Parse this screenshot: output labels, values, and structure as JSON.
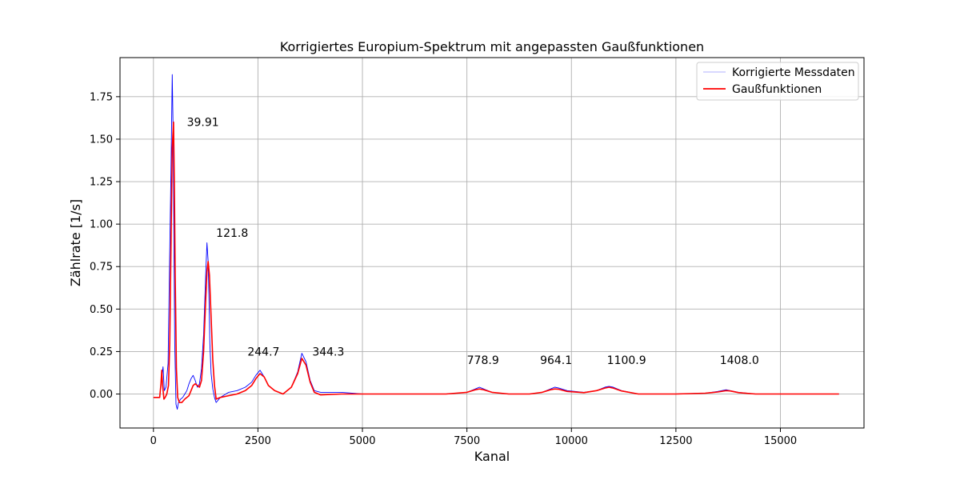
{
  "chart_data": {
    "type": "line",
    "title": "Korrigiertes Europium-Spektrum mit angepassten Gaußfunktionen",
    "xlabel": "Kanal",
    "ylabel": "Zählrate [1/s]",
    "xlim": [
      -800,
      17000
    ],
    "ylim": [
      -0.2,
      1.98
    ],
    "xticks": [
      0,
      2500,
      5000,
      7500,
      10000,
      12500,
      15000
    ],
    "xtick_labels": [
      "0",
      "2500",
      "5000",
      "7500",
      "10000",
      "12500",
      "15000"
    ],
    "yticks": [
      0.0,
      0.25,
      0.5,
      0.75,
      1.0,
      1.25,
      1.5,
      1.75
    ],
    "ytick_labels": [
      "0.00",
      "0.25",
      "0.50",
      "0.75",
      "1.00",
      "1.25",
      "1.50",
      "1.75"
    ],
    "grid": true,
    "legend_position": "top-right",
    "series": [
      {
        "name": "Korrigierte Messdaten",
        "color": "#0000ff",
        "x": [
          0,
          150,
          200,
          230,
          260,
          300,
          350,
          380,
          420,
          450,
          470,
          490,
          510,
          540,
          570,
          600,
          650,
          700,
          750,
          800,
          850,
          900,
          950,
          1000,
          1050,
          1100,
          1150,
          1200,
          1250,
          1280,
          1310,
          1330,
          1350,
          1380,
          1420,
          1460,
          1500,
          1600,
          1800,
          2000,
          2200,
          2350,
          2450,
          2550,
          2650,
          2750,
          2900,
          3100,
          3300,
          3450,
          3550,
          3650,
          3750,
          3850,
          4000,
          4500,
          5000,
          6000,
          7000,
          7500,
          7700,
          7800,
          7900,
          8100,
          8500,
          9000,
          9300,
          9500,
          9600,
          9700,
          9900,
          10300,
          10600,
          10800,
          10900,
          11000,
          11200,
          11600,
          12500,
          13200,
          13500,
          13700,
          13800,
          14000,
          14400,
          15000,
          15500,
          16000,
          16400
        ],
        "y": [
          -0.02,
          -0.02,
          0.1,
          0.16,
          0.02,
          0.04,
          0.18,
          0.7,
          1.3,
          1.88,
          1.55,
          0.9,
          0.3,
          -0.06,
          -0.09,
          -0.05,
          -0.03,
          -0.02,
          0.0,
          0.02,
          0.06,
          0.09,
          0.11,
          0.08,
          0.04,
          0.06,
          0.15,
          0.35,
          0.7,
          0.89,
          0.78,
          0.55,
          0.3,
          0.12,
          0.03,
          -0.02,
          -0.05,
          -0.02,
          0.01,
          0.02,
          0.04,
          0.07,
          0.11,
          0.14,
          0.1,
          0.05,
          0.02,
          0.0,
          0.04,
          0.13,
          0.24,
          0.19,
          0.08,
          0.02,
          0.01,
          0.01,
          0.0,
          0.0,
          0.0,
          0.01,
          0.03,
          0.04,
          0.03,
          0.01,
          0.0,
          0.0,
          0.01,
          0.03,
          0.04,
          0.035,
          0.02,
          0.01,
          0.02,
          0.04,
          0.045,
          0.04,
          0.02,
          0.0,
          0.0,
          0.005,
          0.015,
          0.025,
          0.02,
          0.01,
          0.0,
          0.0,
          0.0,
          0.0,
          0.0
        ]
      },
      {
        "name": "Gaußfunktionen",
        "color": "#ff0000",
        "x": [
          0,
          150,
          180,
          200,
          220,
          250,
          280,
          320,
          360,
          390,
          420,
          450,
          480,
          500,
          520,
          550,
          580,
          620,
          680,
          750,
          800,
          850,
          900,
          950,
          1000,
          1050,
          1100,
          1150,
          1200,
          1250,
          1280,
          1310,
          1340,
          1380,
          1420,
          1460,
          1500,
          1600,
          1800,
          2000,
          2200,
          2350,
          2450,
          2550,
          2650,
          2750,
          2900,
          3100,
          3300,
          3450,
          3550,
          3650,
          3750,
          3850,
          4000,
          4500,
          5000,
          6000,
          7000,
          7500,
          7700,
          7800,
          7900,
          8100,
          8500,
          9000,
          9300,
          9500,
          9600,
          9700,
          9900,
          10300,
          10600,
          10800,
          10900,
          11000,
          11200,
          11600,
          12500,
          13200,
          13500,
          13700,
          13800,
          14000,
          14400,
          15000,
          15500,
          16000,
          16400
        ],
        "y": [
          -0.02,
          -0.02,
          0.06,
          0.14,
          0.05,
          -0.03,
          -0.02,
          0.0,
          0.05,
          0.3,
          0.85,
          1.45,
          1.6,
          1.25,
          0.7,
          0.15,
          -0.02,
          -0.05,
          -0.05,
          -0.03,
          -0.02,
          -0.01,
          0.02,
          0.05,
          0.06,
          0.05,
          0.04,
          0.08,
          0.25,
          0.55,
          0.72,
          0.78,
          0.7,
          0.45,
          0.2,
          0.05,
          -0.03,
          -0.02,
          -0.01,
          0.0,
          0.02,
          0.05,
          0.09,
          0.12,
          0.1,
          0.05,
          0.02,
          0.0,
          0.04,
          0.12,
          0.21,
          0.17,
          0.07,
          0.01,
          -0.005,
          0.0,
          0.0,
          0.0,
          0.0,
          0.01,
          0.025,
          0.03,
          0.025,
          0.01,
          0.0,
          0.0,
          0.01,
          0.025,
          0.03,
          0.028,
          0.015,
          0.008,
          0.02,
          0.035,
          0.04,
          0.035,
          0.018,
          0.0,
          0.0,
          0.005,
          0.012,
          0.02,
          0.018,
          0.008,
          0.0,
          0.0,
          0.0,
          0.0,
          0.0
        ]
      }
    ],
    "annotations": [
      {
        "text": "39.91",
        "x": 800,
        "y": 1.6
      },
      {
        "text": "121.8",
        "x": 1500,
        "y": 0.95
      },
      {
        "text": "244.7",
        "x": 2250,
        "y": 0.25
      },
      {
        "text": "344.3",
        "x": 3800,
        "y": 0.25
      },
      {
        "text": "778.9",
        "x": 7500,
        "y": 0.2
      },
      {
        "text": "964.1",
        "x": 9250,
        "y": 0.2
      },
      {
        "text": "1100.9",
        "x": 10850,
        "y": 0.2
      },
      {
        "text": "1408.0",
        "x": 13550,
        "y": 0.2
      }
    ]
  }
}
